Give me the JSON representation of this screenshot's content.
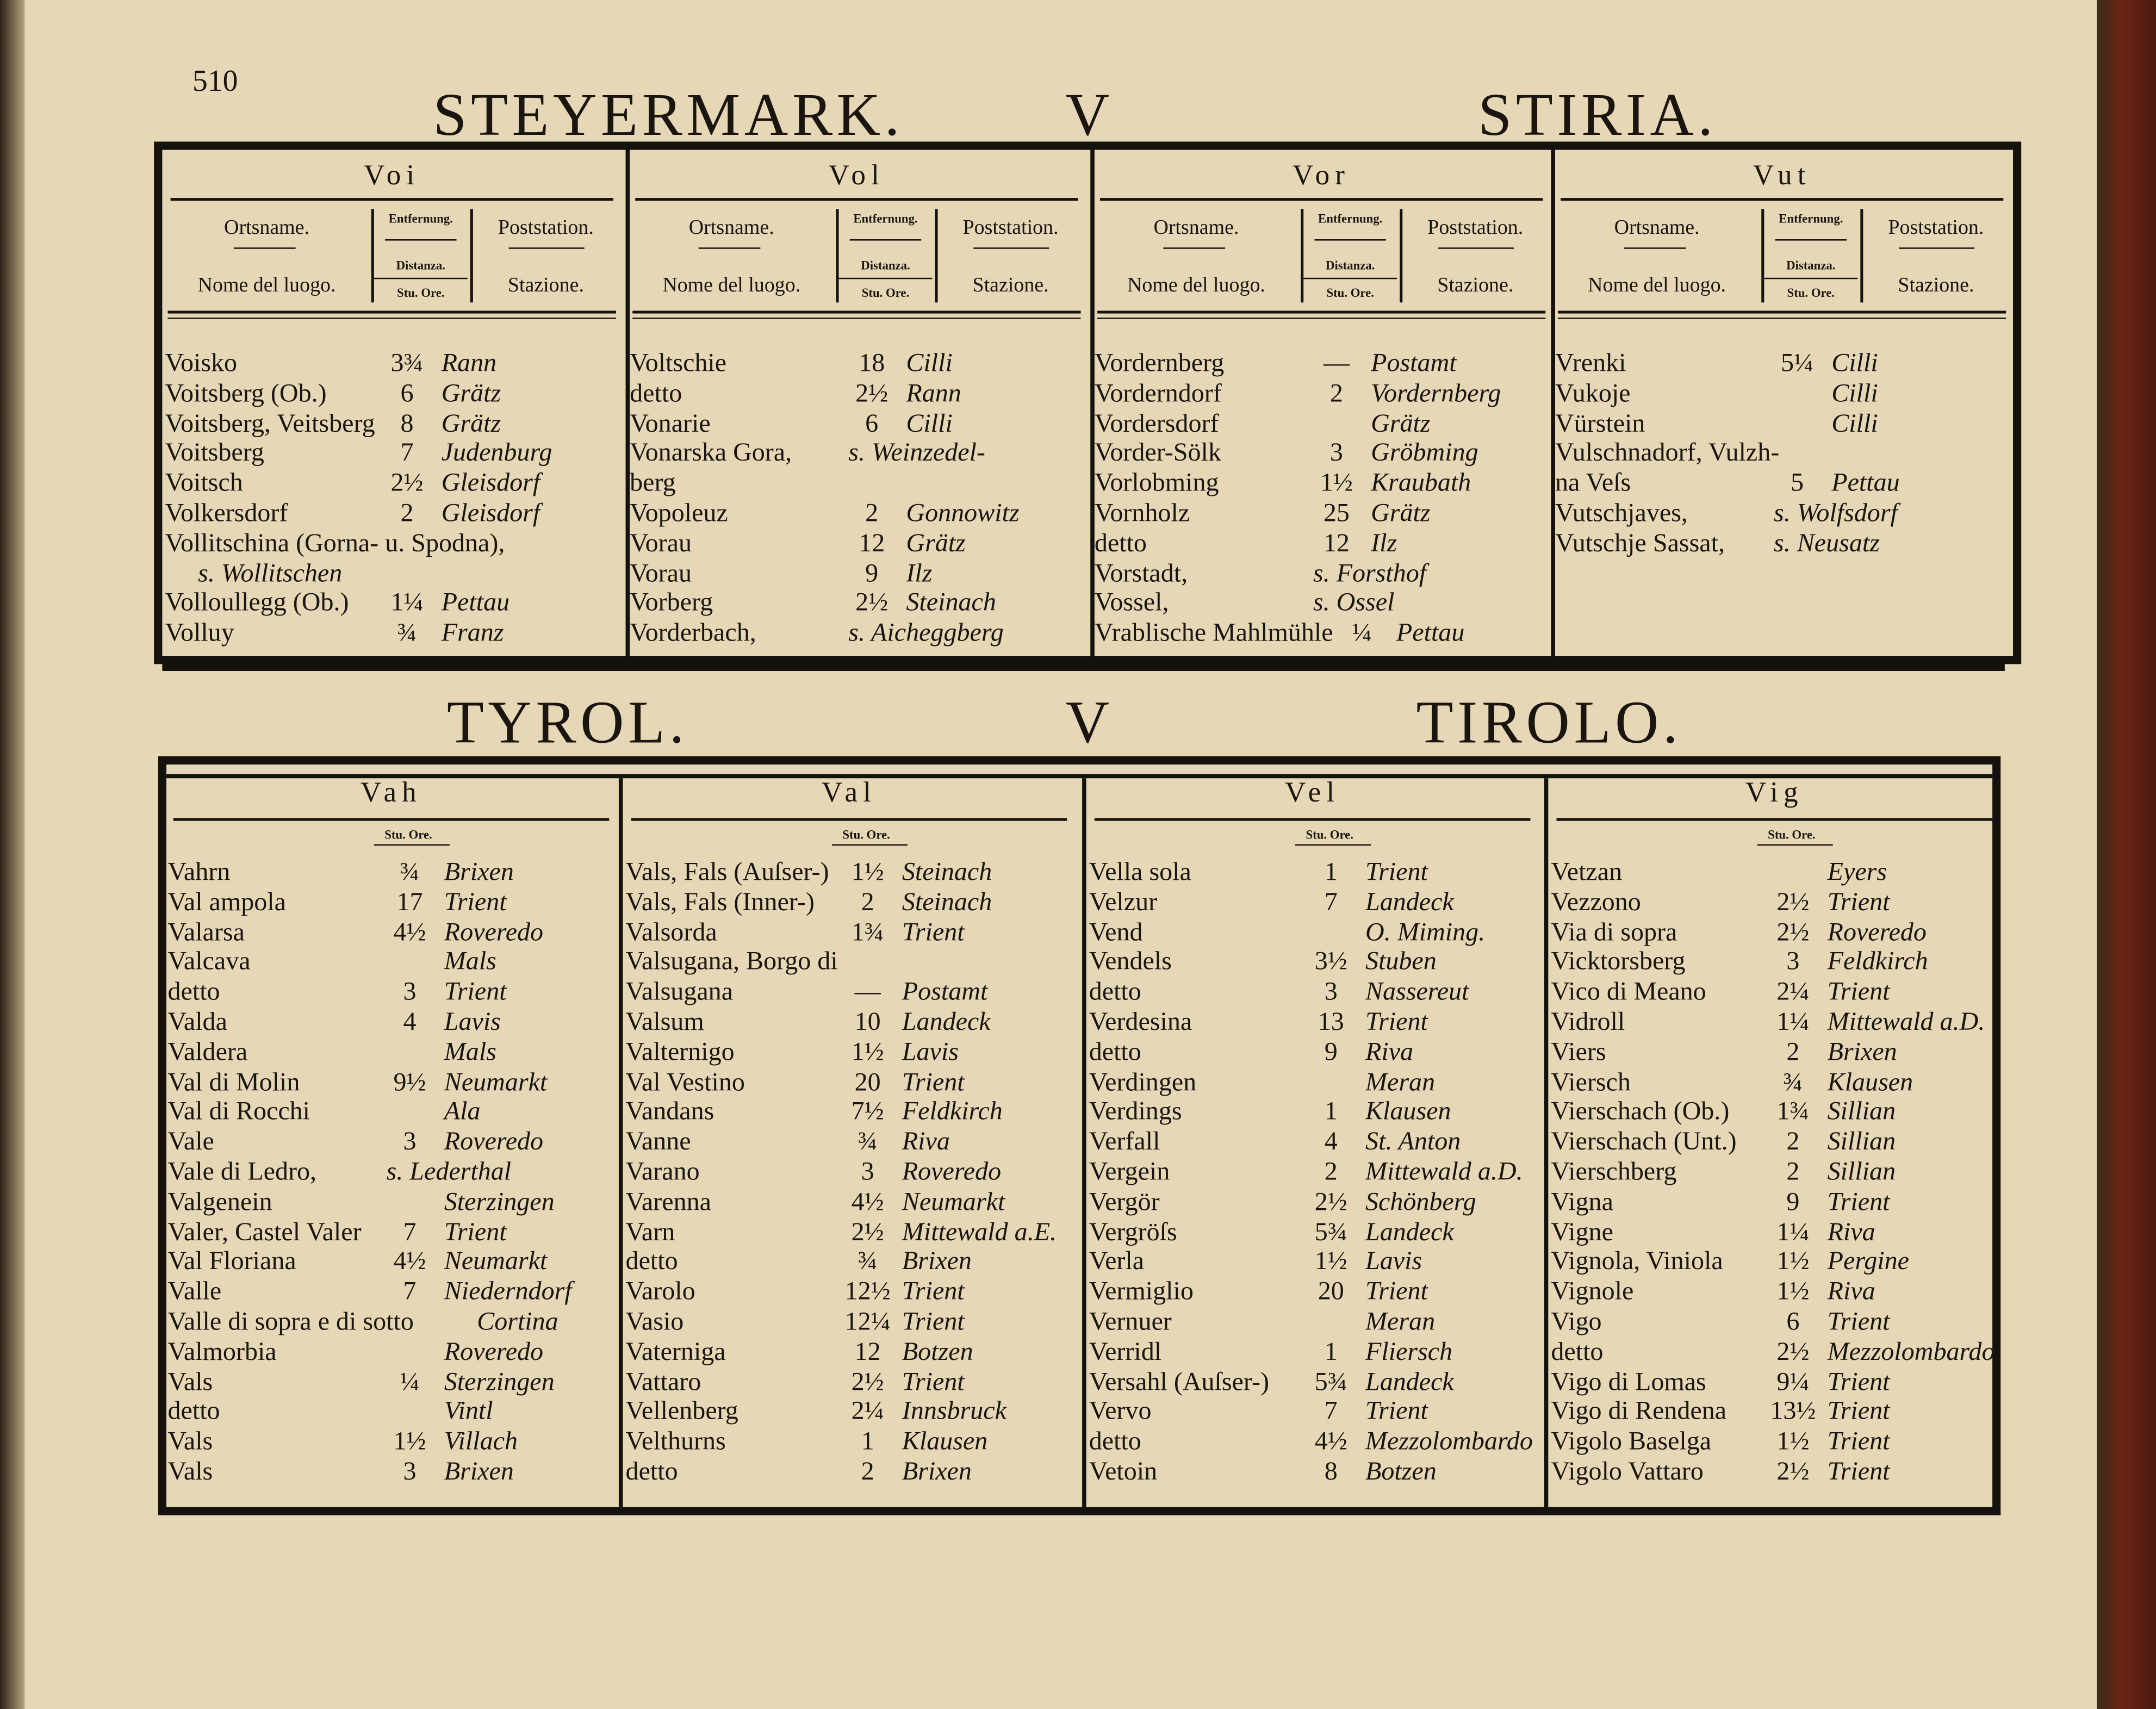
{
  "page_number": "510",
  "top": {
    "title": [
      "STEYERMARK.",
      "V",
      "STIRIA."
    ],
    "header": {
      "name_de": "Ortsname.",
      "name_it": "Nome del luogo.",
      "dist_de": "Entfernung.",
      "dist_it": "Distanza.",
      "dist_unit": "Stu. Ore.",
      "post_de": "Poststation.",
      "post_it": "Stazione."
    },
    "columns": [
      {
        "head": "Voi",
        "rows": [
          {
            "name": "Voisko",
            "dist": "3¾",
            "station": "Rann"
          },
          {
            "name": "Voitsberg (Ob.)",
            "dist": "6",
            "station": "Grätz"
          },
          {
            "name": "Voitsberg, Veitsberg",
            "dist": "8",
            "station": "Grätz"
          },
          {
            "name": "Voitsberg",
            "dist": "7",
            "station": "Judenburg"
          },
          {
            "name": "Voitsch",
            "dist": "2½",
            "station": "Gleisdorf"
          },
          {
            "name": "Volkersdorf",
            "dist": "2",
            "station": "Gleisdorf"
          },
          {
            "name": "Vollitschina (Gorna- u. Spodna),"
          },
          {
            "station": "s. Wollitschen"
          },
          {
            "name": "Volloullegg (Ob.)",
            "dist": "1¼",
            "station": "Pettau"
          },
          {
            "name": "Volluy",
            "dist": "¾",
            "station": "Franz"
          }
        ]
      },
      {
        "head": "Vol",
        "rows": [
          {
            "name": "Voltschie",
            "dist": "18",
            "station": "Cilli"
          },
          {
            "name": "detto",
            "dist": "2½",
            "station": "Rann"
          },
          {
            "name": "Vonarie",
            "dist": "6",
            "station": "Cilli"
          },
          {
            "name": "Vonarska Gora,",
            "station": "s. Weinzedel-"
          },
          {
            "name": "berg"
          },
          {
            "name": "Vopoleuz",
            "dist": "2",
            "station": "Gonnowitz"
          },
          {
            "name": "Vorau",
            "dist": "12",
            "station": "Grätz"
          },
          {
            "name": "Vorau",
            "dist": "9",
            "station": "Ilz"
          },
          {
            "name": "Vorberg",
            "dist": "2½",
            "station": "Steinach"
          },
          {
            "name": "Vorderbach,",
            "station": "s. Aicheggberg"
          }
        ]
      },
      {
        "head": "Vor",
        "rows": [
          {
            "name": "Vordernberg",
            "dist": "—",
            "station": "Postamt"
          },
          {
            "name": "Vorderndorf",
            "dist": "2",
            "station": "Vordernberg"
          },
          {
            "name": "Vordersdorf",
            "station": "Grätz"
          },
          {
            "name": "Vorder-Sölk",
            "dist": "3",
            "station": "Gröbming"
          },
          {
            "name": "Vorlobming",
            "dist": "1½",
            "station": "Kraubath"
          },
          {
            "name": "Vornholz",
            "dist": "25",
            "station": "Grätz"
          },
          {
            "name": "detto",
            "dist": "12",
            "station": "Ilz"
          },
          {
            "name": "Vorstadt,",
            "station": "s. Forsthof"
          },
          {
            "name": "Vossel,",
            "station": "s. Ossel"
          },
          {
            "name": "Vrablische Mahlmühle",
            "dist": "¼",
            "station": "Pettau"
          }
        ]
      },
      {
        "head": "Vut",
        "rows": [
          {
            "name": "Vrenki",
            "dist": "5¼",
            "station": "Cilli"
          },
          {
            "name": "Vukoje",
            "station": "Cilli"
          },
          {
            "name": "Vürstein",
            "station": "Cilli"
          },
          {
            "name": "Vulschnadorf, Vulzh-"
          },
          {
            "name": "na Veſs",
            "dist": "5",
            "station": "Pettau"
          },
          {
            "name": "Vutschjaves,",
            "station": "s. Wolfsdorf"
          },
          {
            "name": "Vutschje Sassat,",
            "station": "s. Neusatz"
          }
        ]
      }
    ]
  },
  "bottom": {
    "title": [
      "TYROL.",
      "V",
      "TIROLO."
    ],
    "unit": "Stu. Ore.",
    "columns": [
      {
        "head": "Vah",
        "rows": [
          {
            "name": "Vahrn",
            "dist": "¾",
            "station": "Brixen"
          },
          {
            "name": "Val ampola",
            "dist": "17",
            "station": "Trient"
          },
          {
            "name": "Valarsa",
            "dist": "4½",
            "station": "Roveredo"
          },
          {
            "name": "Valcava",
            "station": "Mals"
          },
          {
            "name": "detto",
            "dist": "3",
            "station": "Trient"
          },
          {
            "name": "Valda",
            "dist": "4",
            "station": "Lavis"
          },
          {
            "name": "Valdera",
            "station": "Mals"
          },
          {
            "name": "Val di Molin",
            "dist": "9½",
            "station": "Neumarkt"
          },
          {
            "name": "Val di Rocchi",
            "station": "Ala"
          },
          {
            "name": "Vale",
            "dist": "3",
            "station": "Roveredo"
          },
          {
            "name": "Vale di Ledro,",
            "station": "s. Lederthal"
          },
          {
            "name": "Valgenein",
            "station": "Sterzingen"
          },
          {
            "name": "Valer, Castel Valer",
            "dist": "7",
            "station": "Trient"
          },
          {
            "name": "Val Floriana",
            "dist": "4½",
            "station": "Neumarkt"
          },
          {
            "name": "Valle",
            "dist": "7",
            "station": "Niederndorf"
          },
          {
            "name": "Valle di sopra e di sotto",
            "station": "Cortina"
          },
          {
            "name": "Valmorbia",
            "station": "Roveredo"
          },
          {
            "name": "Vals",
            "dist": "¼",
            "station": "Sterzingen"
          },
          {
            "name": "detto",
            "station": "Vintl"
          },
          {
            "name": "Vals",
            "dist": "1½",
            "station": "Villach"
          },
          {
            "name": "Vals",
            "dist": "3",
            "station": "Brixen"
          }
        ]
      },
      {
        "head": "Val",
        "rows": [
          {
            "name": "Vals, Fals (Auſser-)",
            "dist": "1½",
            "station": "Steinach"
          },
          {
            "name": "Vals, Fals (Inner-)",
            "dist": "2",
            "station": "Steinach"
          },
          {
            "name": "Valsorda",
            "dist": "1¾",
            "station": "Trient"
          },
          {
            "name": "Valsugana, Borgo di"
          },
          {
            "name": "Valsugana",
            "dist": "—",
            "station": "Postamt"
          },
          {
            "name": "Valsum",
            "dist": "10",
            "station": "Landeck"
          },
          {
            "name": "Valternigo",
            "dist": "1½",
            "station": "Lavis"
          },
          {
            "name": "Val Vestino",
            "dist": "20",
            "station": "Trient"
          },
          {
            "name": "Vandans",
            "dist": "7½",
            "station": "Feldkirch"
          },
          {
            "name": "Vanne",
            "dist": "¾",
            "station": "Riva"
          },
          {
            "name": "Varano",
            "dist": "3",
            "station": "Roveredo"
          },
          {
            "name": "Varenna",
            "dist": "4½",
            "station": "Neumarkt"
          },
          {
            "name": "Varn",
            "dist": "2½",
            "station": "Mittewald a.E."
          },
          {
            "name": "detto",
            "dist": "¾",
            "station": "Brixen"
          },
          {
            "name": "Varolo",
            "dist": "12½",
            "station": "Trient"
          },
          {
            "name": "Vasio",
            "dist": "12¼",
            "station": "Trient"
          },
          {
            "name": "Vaterniga",
            "dist": "12",
            "station": "Botzen"
          },
          {
            "name": "Vattaro",
            "dist": "2½",
            "station": "Trient"
          },
          {
            "name": "Vellenberg",
            "dist": "2¼",
            "station": "Innsbruck"
          },
          {
            "name": "Velthurns",
            "dist": "1",
            "station": "Klausen"
          },
          {
            "name": "detto",
            "dist": "2",
            "station": "Brixen"
          }
        ]
      },
      {
        "head": "Vel",
        "rows": [
          {
            "name": "Vella sola",
            "dist": "1",
            "station": "Trient"
          },
          {
            "name": "Velzur",
            "dist": "7",
            "station": "Landeck"
          },
          {
            "name": "Vend",
            "station": "O. Miming."
          },
          {
            "name": "Vendels",
            "dist": "3½",
            "station": "Stuben"
          },
          {
            "name": "detto",
            "dist": "3",
            "station": "Nassereut"
          },
          {
            "name": "Verdesina",
            "dist": "13",
            "station": "Trient"
          },
          {
            "name": "detto",
            "dist": "9",
            "station": "Riva"
          },
          {
            "name": "Verdingen",
            "station": "Meran"
          },
          {
            "name": "Verdings",
            "dist": "1",
            "station": "Klausen"
          },
          {
            "name": "Verfall",
            "dist": "4",
            "station": "St. Anton"
          },
          {
            "name": "Vergein",
            "dist": "2",
            "station": "Mittewald a.D."
          },
          {
            "name": "Vergör",
            "dist": "2½",
            "station": "Schönberg"
          },
          {
            "name": "Vergröſs",
            "dist": "5¾",
            "station": "Landeck"
          },
          {
            "name": "Verla",
            "dist": "1½",
            "station": "Lavis"
          },
          {
            "name": "Vermiglio",
            "dist": "20",
            "station": "Trient"
          },
          {
            "name": "Vernuer",
            "station": "Meran"
          },
          {
            "name": "Verridl",
            "dist": "1",
            "station": "Fliersch"
          },
          {
            "name": "Versahl (Auſser-)",
            "dist": "5¾",
            "station": "Landeck"
          },
          {
            "name": "Vervo",
            "dist": "7",
            "station": "Trient"
          },
          {
            "name": "detto",
            "dist": "4½",
            "station": "Mezzolombardo"
          },
          {
            "name": "Vetoin",
            "dist": "8",
            "station": "Botzen"
          }
        ]
      },
      {
        "head": "Vig",
        "rows": [
          {
            "name": "Vetzan",
            "station": "Eyers"
          },
          {
            "name": "Vezzono",
            "dist": "2½",
            "station": "Trient"
          },
          {
            "name": "Via di sopra",
            "dist": "2½",
            "station": "Roveredo"
          },
          {
            "name": "Vicktorsberg",
            "dist": "3",
            "station": "Feldkirch"
          },
          {
            "name": "Vico di Meano",
            "dist": "2¼",
            "station": "Trient"
          },
          {
            "name": "Vidroll",
            "dist": "1¼",
            "station": "Mittewald a.D."
          },
          {
            "name": "Viers",
            "dist": "2",
            "station": "Brixen"
          },
          {
            "name": "Viersch",
            "dist": "¾",
            "station": "Klausen"
          },
          {
            "name": "Vierschach (Ob.)",
            "dist": "1¾",
            "station": "Sillian"
          },
          {
            "name": "Vierschach (Unt.)",
            "dist": "2",
            "station": "Sillian"
          },
          {
            "name": "Vierschberg",
            "dist": "2",
            "station": "Sillian"
          },
          {
            "name": "Vigna",
            "dist": "9",
            "station": "Trient"
          },
          {
            "name": "Vigne",
            "dist": "1¼",
            "station": "Riva"
          },
          {
            "name": "Vignola, Viniola",
            "dist": "1½",
            "station": "Pergine"
          },
          {
            "name": "Vignole",
            "dist": "1½",
            "station": "Riva"
          },
          {
            "name": "Vigo",
            "dist": "6",
            "station": "Trient"
          },
          {
            "name": "detto",
            "dist": "2½",
            "station": "Mezzolombardo"
          },
          {
            "name": "Vigo di Lomas",
            "dist": "9¼",
            "station": "Trient"
          },
          {
            "name": "Vigo di Rendena",
            "dist": "13½",
            "station": "Trient"
          },
          {
            "name": "Vigolo Baselga",
            "dist": "1½",
            "station": "Trient"
          },
          {
            "name": "Vigolo Vattaro",
            "dist": "2½",
            "station": "Trient"
          }
        ]
      }
    ]
  }
}
